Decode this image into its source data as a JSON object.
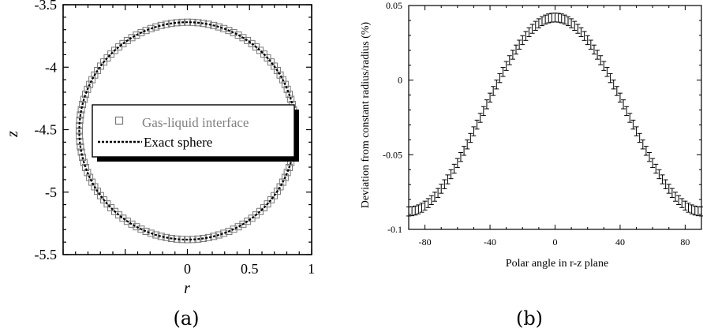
{
  "chart_data": [
    {
      "panel_label": "(a)",
      "type": "scatter",
      "xlabel": "r",
      "ylabel": "z",
      "xlim": [
        -1,
        1
      ],
      "ylim": [
        -5.5,
        -3.5
      ],
      "x_ticks": [
        0,
        0.5,
        1
      ],
      "x_tick_labels": [
        "0",
        "0.5",
        "1"
      ],
      "y_ticks": [
        -3.5,
        -4,
        -4.5,
        -5,
        -5.5
      ],
      "y_tick_labels": [
        "-3.5",
        "-4",
        "-4.5",
        "-5",
        "-5.5"
      ],
      "grid": false,
      "legend_position": "center",
      "legend": [
        "Gas-liquid interface",
        "Exact sphere"
      ],
      "series": [
        {
          "name": "Gas-liquid interface",
          "marker": "open-square",
          "color": "#777777",
          "shape": "circle",
          "center": [
            0,
            -4.51
          ],
          "radius": 0.87,
          "point_count": 128
        },
        {
          "name": "Exact sphere",
          "line_style": "dashed",
          "color": "#000000",
          "shape": "circle",
          "center": [
            0,
            -4.51
          ],
          "radius": 0.87
        }
      ]
    },
    {
      "panel_label": "(b)",
      "type": "line",
      "xlabel": "Polar angle in r-z plane",
      "ylabel": "Deviation from constant radius/radius (%)",
      "xlim": [
        -90,
        90
      ],
      "ylim": [
        -0.1,
        0.05
      ],
      "x_ticks": [
        -80,
        -40,
        0,
        40,
        80
      ],
      "x_tick_labels": [
        "-80",
        "-40",
        "0",
        "40",
        "80"
      ],
      "y_ticks": [
        0.05,
        0,
        -0.05,
        -0.1
      ],
      "y_tick_labels": [
        "0.05",
        "0",
        "-0.05",
        "-0.1"
      ],
      "grid": false,
      "series": [
        {
          "marker": "error-bar",
          "color": "#000000",
          "x_step": 2,
          "x_range": [
            -90,
            90
          ],
          "peak_y": 0.042,
          "min_y": -0.088,
          "error_half_width": 0.003,
          "profile": "y = min_y + (peak_y - min_y) * cos^2(x)"
        }
      ]
    }
  ]
}
